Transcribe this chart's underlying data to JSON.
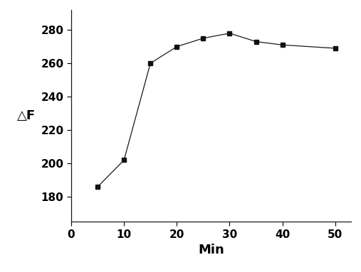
{
  "x": [
    5,
    10,
    15,
    20,
    25,
    30,
    35,
    40,
    50
  ],
  "y": [
    186,
    202,
    260,
    270,
    275,
    278,
    273,
    271,
    269
  ],
  "xlabel": "Min",
  "ylabel": "△F",
  "xlim": [
    0,
    53
  ],
  "ylim": [
    165,
    292
  ],
  "xticks": [
    0,
    10,
    20,
    30,
    40,
    50
  ],
  "yticks": [
    180,
    200,
    220,
    240,
    260,
    280
  ],
  "line_color": "#1a1a1a",
  "marker": "s",
  "marker_size": 5,
  "marker_color": "#111111",
  "linewidth": 0.9,
  "background_color": "#ffffff",
  "xlabel_fontsize": 13,
  "ylabel_fontsize": 13,
  "tick_fontsize": 11
}
